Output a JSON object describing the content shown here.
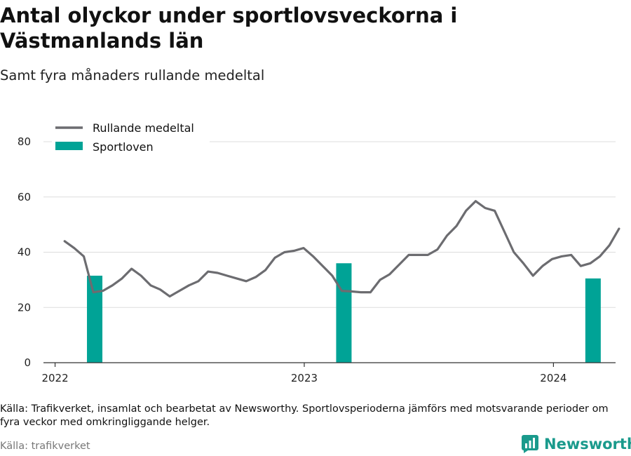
{
  "title": "Antal olyckor under sportlovsveckorna i Västmanlands län",
  "subtitle": "Samt fyra månaders rullande medeltal",
  "footnote": "Källa: Trafikverket, insamlat och bearbetat av Newsworthy. Sportlovsperioderna jämförs med motsvarande perioder om fyra veckor med omkringliggande helger.",
  "source": "Källa: trafikverket",
  "brand": "Newsworthy",
  "colors": {
    "line": "#6c6c70",
    "bar": "#00a396",
    "grid": "#dddddd",
    "brand": "#1a9a8c"
  },
  "chart_data": {
    "type": "bar+line",
    "xlim": [
      "2021-12-15",
      "2024-04-01"
    ],
    "ylim": [
      0,
      80
    ],
    "yticks": [
      0,
      20,
      40,
      60,
      80
    ],
    "xticks": [
      {
        "date": "2022-01-01",
        "label": "2022"
      },
      {
        "date": "2023-01-01",
        "label": "2023"
      },
      {
        "date": "2024-01-01",
        "label": "2024"
      }
    ],
    "legend": {
      "placement": "top-left"
    },
    "series": [
      {
        "name": "Rullande medeltal",
        "type": "line",
        "points": [
          [
            "2022-01-15",
            44
          ],
          [
            "2022-01-29",
            41.5
          ],
          [
            "2022-02-12",
            38.5
          ],
          [
            "2022-02-26",
            25.5
          ],
          [
            "2022-03-12",
            26
          ],
          [
            "2022-03-26",
            28
          ],
          [
            "2022-04-09",
            30.5
          ],
          [
            "2022-04-23",
            34
          ],
          [
            "2022-05-07",
            31.5
          ],
          [
            "2022-05-21",
            28
          ],
          [
            "2022-06-04",
            26.5
          ],
          [
            "2022-06-18",
            24
          ],
          [
            "2022-07-02",
            26
          ],
          [
            "2022-07-16",
            28
          ],
          [
            "2022-07-30",
            29.5
          ],
          [
            "2022-08-13",
            33
          ],
          [
            "2022-08-27",
            32.5
          ],
          [
            "2022-09-10",
            31.5
          ],
          [
            "2022-09-24",
            30.5
          ],
          [
            "2022-10-08",
            29.5
          ],
          [
            "2022-10-22",
            31
          ],
          [
            "2022-11-05",
            33.5
          ],
          [
            "2022-11-19",
            38
          ],
          [
            "2022-12-03",
            40
          ],
          [
            "2022-12-17",
            40.5
          ],
          [
            "2022-12-31",
            41.5
          ],
          [
            "2023-01-14",
            38.5
          ],
          [
            "2023-01-28",
            35
          ],
          [
            "2023-02-11",
            31.5
          ],
          [
            "2023-02-25",
            26
          ],
          [
            "2023-03-11",
            25.8
          ],
          [
            "2023-03-25",
            25.5
          ],
          [
            "2023-04-08",
            25.5
          ],
          [
            "2023-04-22",
            30
          ],
          [
            "2023-05-06",
            32
          ],
          [
            "2023-05-20",
            35.5
          ],
          [
            "2023-06-03",
            39
          ],
          [
            "2023-06-17",
            39
          ],
          [
            "2023-07-01",
            39
          ],
          [
            "2023-07-15",
            41
          ],
          [
            "2023-07-29",
            46
          ],
          [
            "2023-08-12",
            49.5
          ],
          [
            "2023-08-26",
            55
          ],
          [
            "2023-09-09",
            58.5
          ],
          [
            "2023-09-23",
            56
          ],
          [
            "2023-10-07",
            55
          ],
          [
            "2023-10-21",
            47.5
          ],
          [
            "2023-11-04",
            40
          ],
          [
            "2023-11-18",
            36
          ],
          [
            "2023-12-02",
            31.5
          ],
          [
            "2023-12-16",
            35
          ],
          [
            "2023-12-30",
            37.5
          ],
          [
            "2024-01-13",
            38.5
          ],
          [
            "2024-01-27",
            39
          ],
          [
            "2024-02-10",
            35
          ],
          [
            "2024-02-24",
            36
          ],
          [
            "2024-03-09",
            38.5
          ],
          [
            "2024-03-23",
            42.5
          ],
          [
            "2024-04-06",
            48.5
          ]
        ]
      },
      {
        "name": "Sportloven",
        "type": "bar",
        "points": [
          [
            "2022-02-28",
            31.5
          ],
          [
            "2023-02-28",
            36
          ],
          [
            "2024-02-28",
            30.5
          ]
        ]
      }
    ]
  }
}
